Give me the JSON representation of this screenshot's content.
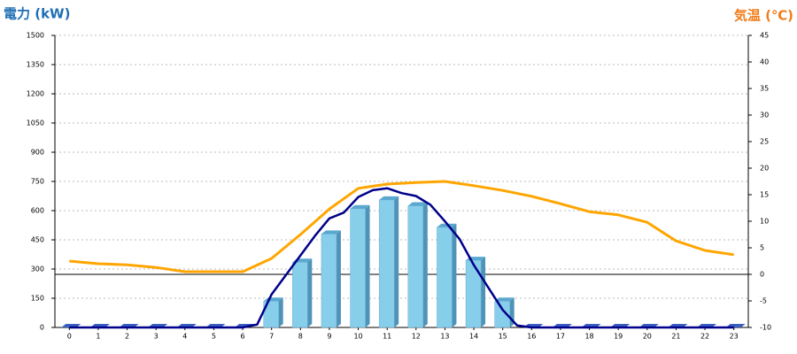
{
  "chart_data": {
    "type": "bar",
    "title": "電力 (kW)",
    "y2_title": "気温 (℃)",
    "categories": [
      "0",
      "1",
      "2",
      "3",
      "4",
      "5",
      "6",
      "7",
      "8",
      "9",
      "10",
      "11",
      "12",
      "13",
      "14",
      "15",
      "16",
      "17",
      "18",
      "19",
      "20",
      "21",
      "22",
      "23"
    ],
    "ylim": [
      0,
      1500
    ],
    "yticks": [
      0,
      150,
      300,
      450,
      600,
      750,
      900,
      1050,
      1200,
      1350,
      1500
    ],
    "y2lim": [
      -10,
      45
    ],
    "y2ticks": [
      -10,
      -5,
      0,
      5,
      10,
      15,
      20,
      25,
      30,
      35,
      40,
      45
    ],
    "grid": true,
    "reference_line": {
      "axis": "y2",
      "value": 0
    },
    "series": [
      {
        "type": "bar",
        "color": "#87ceeb",
        "values": [
          0,
          0,
          0,
          0,
          0,
          0,
          0,
          135,
          335,
          480,
          610,
          655,
          625,
          515,
          345,
          135,
          0,
          0,
          0,
          0,
          0,
          0,
          0,
          0
        ]
      },
      {
        "type": "line",
        "color": "#00008b",
        "x": [
          0,
          0.5,
          1,
          1.5,
          2,
          2.5,
          3,
          3.5,
          4,
          4.5,
          5,
          5.5,
          6,
          6.5,
          7,
          7.5,
          8,
          8.5,
          9,
          9.5,
          10,
          10.5,
          11,
          11.5,
          12,
          12.5,
          13,
          13.5,
          14,
          14.5,
          15,
          15.5,
          16,
          16.5,
          17,
          17.5,
          18,
          18.5,
          19,
          19.5,
          20,
          20.5,
          21,
          21.5,
          22,
          22.5,
          23
        ],
        "values": [
          0,
          0,
          0,
          0,
          0,
          0,
          0,
          0,
          0,
          0,
          0,
          0,
          0,
          15,
          170,
          270,
          370,
          470,
          560,
          590,
          670,
          705,
          715,
          690,
          675,
          630,
          545,
          455,
          320,
          205,
          90,
          10,
          0,
          0,
          0,
          0,
          0,
          0,
          0,
          0,
          0,
          0,
          0,
          0,
          0,
          0,
          0
        ]
      },
      {
        "type": "line",
        "color": "#ffa500",
        "axis": "y2",
        "values": [
          2.5,
          2,
          1.8,
          1.3,
          0.5,
          0.5,
          0.5,
          3,
          7.5,
          12.3,
          16.2,
          17,
          17.3,
          17.5,
          16.7,
          15.8,
          14.7,
          13.3,
          11.8,
          11.2,
          9.8,
          6.3,
          4.5,
          3.7
        ]
      }
    ]
  }
}
